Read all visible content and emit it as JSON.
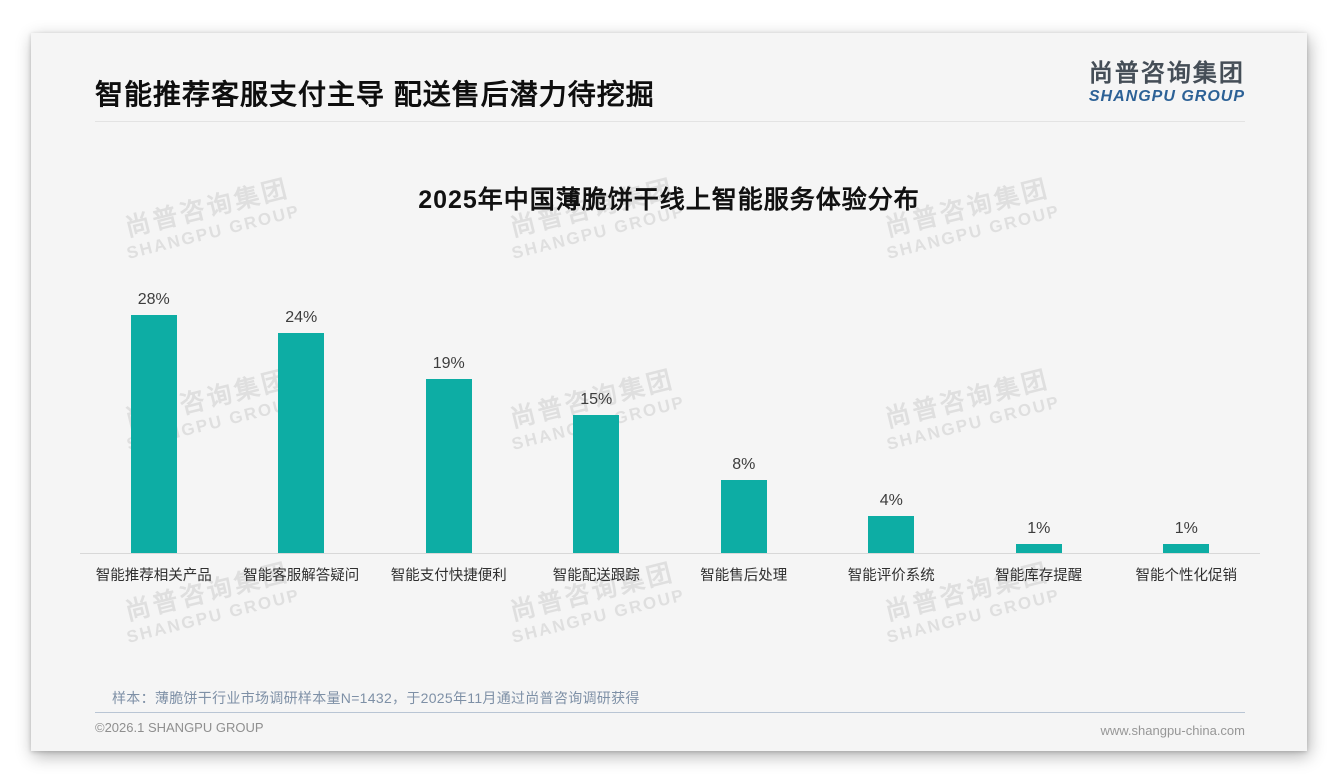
{
  "header": {
    "title": "智能推荐客服支付主导 配送售后潜力待挖掘",
    "logo_cn": "尚普咨询集团",
    "logo_en": "SHANGPU GROUP"
  },
  "watermark": {
    "line1": "尚普咨询集团",
    "line2": "SHANGPU GROUP"
  },
  "chart_data": {
    "type": "bar",
    "title": "2025年中国薄脆饼干线上智能服务体验分布",
    "categories": [
      "智能推荐相关产品",
      "智能客服解答疑问",
      "智能支付快捷便利",
      "智能配送跟踪",
      "智能售后处理",
      "智能评价系统",
      "智能库存提醒",
      "智能个性化促销"
    ],
    "values": [
      28,
      24,
      19,
      15,
      8,
      4,
      1,
      1
    ],
    "unit": "%",
    "xlabel": "",
    "ylabel": "",
    "ylim": [
      0,
      30
    ],
    "grid": false,
    "legend": "none",
    "bar_color": "#0dada4",
    "value_labels_shown": true
  },
  "footer": {
    "sample_note": "样本：薄脆饼干行业市场调研样本量N=1432，于2025年11月通过尚普咨询调研获得",
    "copyright": "©2026.1 SHANGPU GROUP",
    "website": "www.shangpu-china.com"
  },
  "colors": {
    "bar": "#0dada4",
    "card_background": "#f5f5f5",
    "logo_blue": "#2c6196",
    "note_blue_gray": "#7e90a6"
  }
}
